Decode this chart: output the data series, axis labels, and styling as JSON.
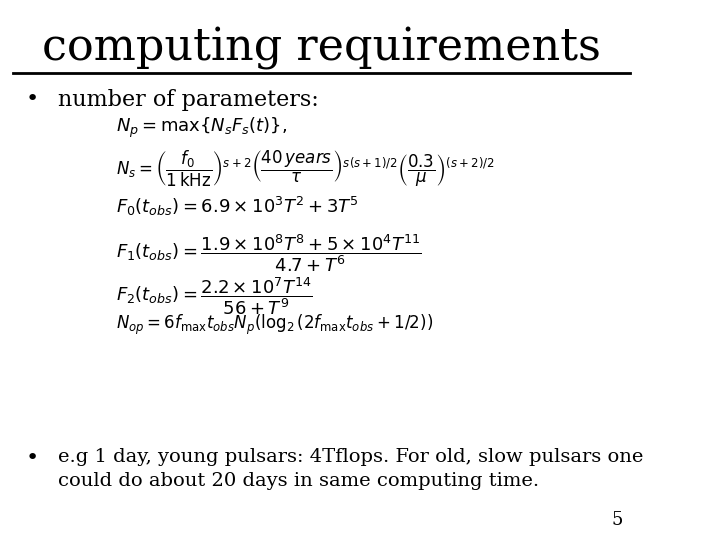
{
  "title": "computing requirements",
  "background_color": "#ffffff",
  "title_fontsize": 32,
  "title_font": "serif",
  "bullet1": "number of parameters:",
  "bullet2": "e.g 1 day, young pulsars: 4Tflops. For old, slow pulsars one\ncould do about 20 days in same computing time.",
  "page_number": "5",
  "equations": [
    "$N_p = \\max\\{N_s F_s(t)\\},$",
    "$N_s = \\left(\\dfrac{f_0}{1\\,\\mathrm{kHz}}\\right)^{s+2} \\left(\\dfrac{40\\,years}{\\tau}\\right)^{s(s+1)/2} \\left(\\dfrac{0.3}{\\mu}\\right)^{(s+2)/2}$",
    "$F_0(t_{obs}) = 6.9\\times10^3 T^2 + 3T^5$",
    "$F_1(t_{obs}) = \\dfrac{1.9\\times10^8 T^8 + 5\\times10^4 T^{11}}{4.7 + T^6}$",
    "$F_2(t_{obs}) = \\dfrac{2.2\\times10^7 T^{14}}{56 + T^9}$",
    "$N_{op} = 6 f_{\\max} t_{obs} N_p (\\log_2(2 f_{\\max} t_{obs} + 1/2))$"
  ]
}
